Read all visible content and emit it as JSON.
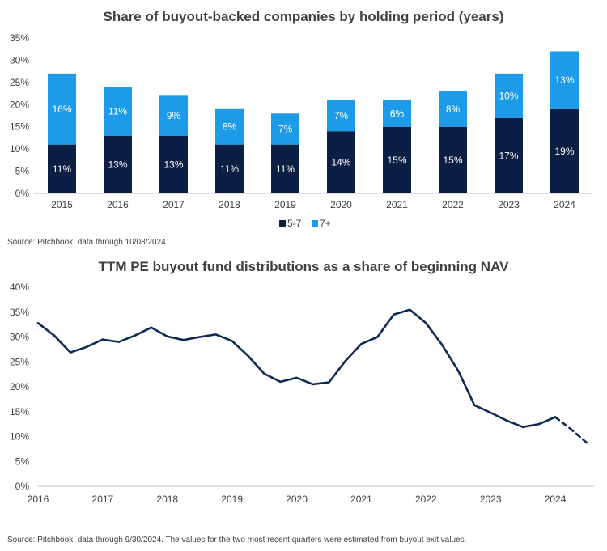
{
  "colors": {
    "series_dark": "#0b1f45",
    "series_light": "#1e9be8",
    "line": "#0e2a52",
    "axis": "#bfbfbf"
  },
  "chart_data": [
    {
      "type": "bar",
      "stacked": true,
      "title": "Share of buyout-backed companies by holding period (years)",
      "categories": [
        "2015",
        "2016",
        "2017",
        "2018",
        "2019",
        "2020",
        "2021",
        "2022",
        "2023",
        "2024"
      ],
      "series": [
        {
          "name": "5-7",
          "values": [
            11,
            13,
            13,
            11,
            11,
            14,
            15,
            15,
            17,
            19
          ],
          "labels": [
            "11%",
            "13%",
            "13%",
            "11%",
            "11%",
            "14%",
            "15%",
            "15%",
            "17%",
            "19%"
          ]
        },
        {
          "name": "7+",
          "values": [
            16,
            11,
            9,
            8,
            7,
            7,
            6,
            8,
            10,
            13
          ],
          "labels": [
            "16%",
            "11%",
            "9%",
            "8%",
            "7%",
            "7%",
            "6%",
            "8%",
            "10%",
            "13%"
          ]
        }
      ],
      "ylim": [
        0,
        35
      ],
      "yticks": [
        "0%",
        "5%",
        "10%",
        "15%",
        "20%",
        "25%",
        "30%",
        "35%"
      ],
      "legend_position": "bottom",
      "grid": false,
      "source": "Source: Pitchbook, data through 10/08/2024."
    },
    {
      "type": "line",
      "title": "TTM PE buyout fund distributions as a share of beginning NAV",
      "xticks": [
        "2016",
        "2017",
        "2018",
        "2019",
        "2020",
        "2021",
        "2022",
        "2023",
        "2024"
      ],
      "xlim": [
        2016,
        2024.6
      ],
      "ylim": [
        0,
        40
      ],
      "yticks": [
        "0%",
        "5%",
        "10%",
        "15%",
        "20%",
        "25%",
        "30%",
        "35%",
        "40%"
      ],
      "series": [
        {
          "x": [
            2016.0,
            2016.25,
            2016.5,
            2016.75,
            2017.0,
            2017.25,
            2017.5,
            2017.75,
            2018.0,
            2018.25,
            2018.5,
            2018.75,
            2019.0,
            2019.25,
            2019.5,
            2019.75,
            2020.0,
            2020.25,
            2020.5,
            2020.75,
            2021.0,
            2021.25,
            2021.5,
            2021.75,
            2022.0,
            2022.25,
            2022.5,
            2022.75,
            2023.0,
            2023.25,
            2023.5,
            2023.75,
            2024.0
          ],
          "y": [
            32.8,
            30.3,
            26.9,
            28.0,
            29.5,
            29.0,
            30.3,
            31.9,
            30.1,
            29.4,
            30.0,
            30.5,
            29.2,
            26.2,
            22.6,
            21.0,
            21.8,
            20.5,
            20.9,
            25.1,
            28.6,
            30.0,
            34.5,
            35.5,
            32.8,
            28.4,
            23.2,
            16.3,
            14.8,
            13.2,
            11.9,
            12.5,
            13.9
          ],
          "style": "solid"
        },
        {
          "x": [
            2024.0,
            2024.25,
            2024.5
          ],
          "y": [
            13.9,
            11.4,
            8.6
          ],
          "style": "dashed",
          "note": "estimated"
        }
      ],
      "grid": false,
      "source": "Source: Pitchbook, data through 9/30/2024. The values for the two most recent quarters were estimated from buyout exit values."
    }
  ]
}
